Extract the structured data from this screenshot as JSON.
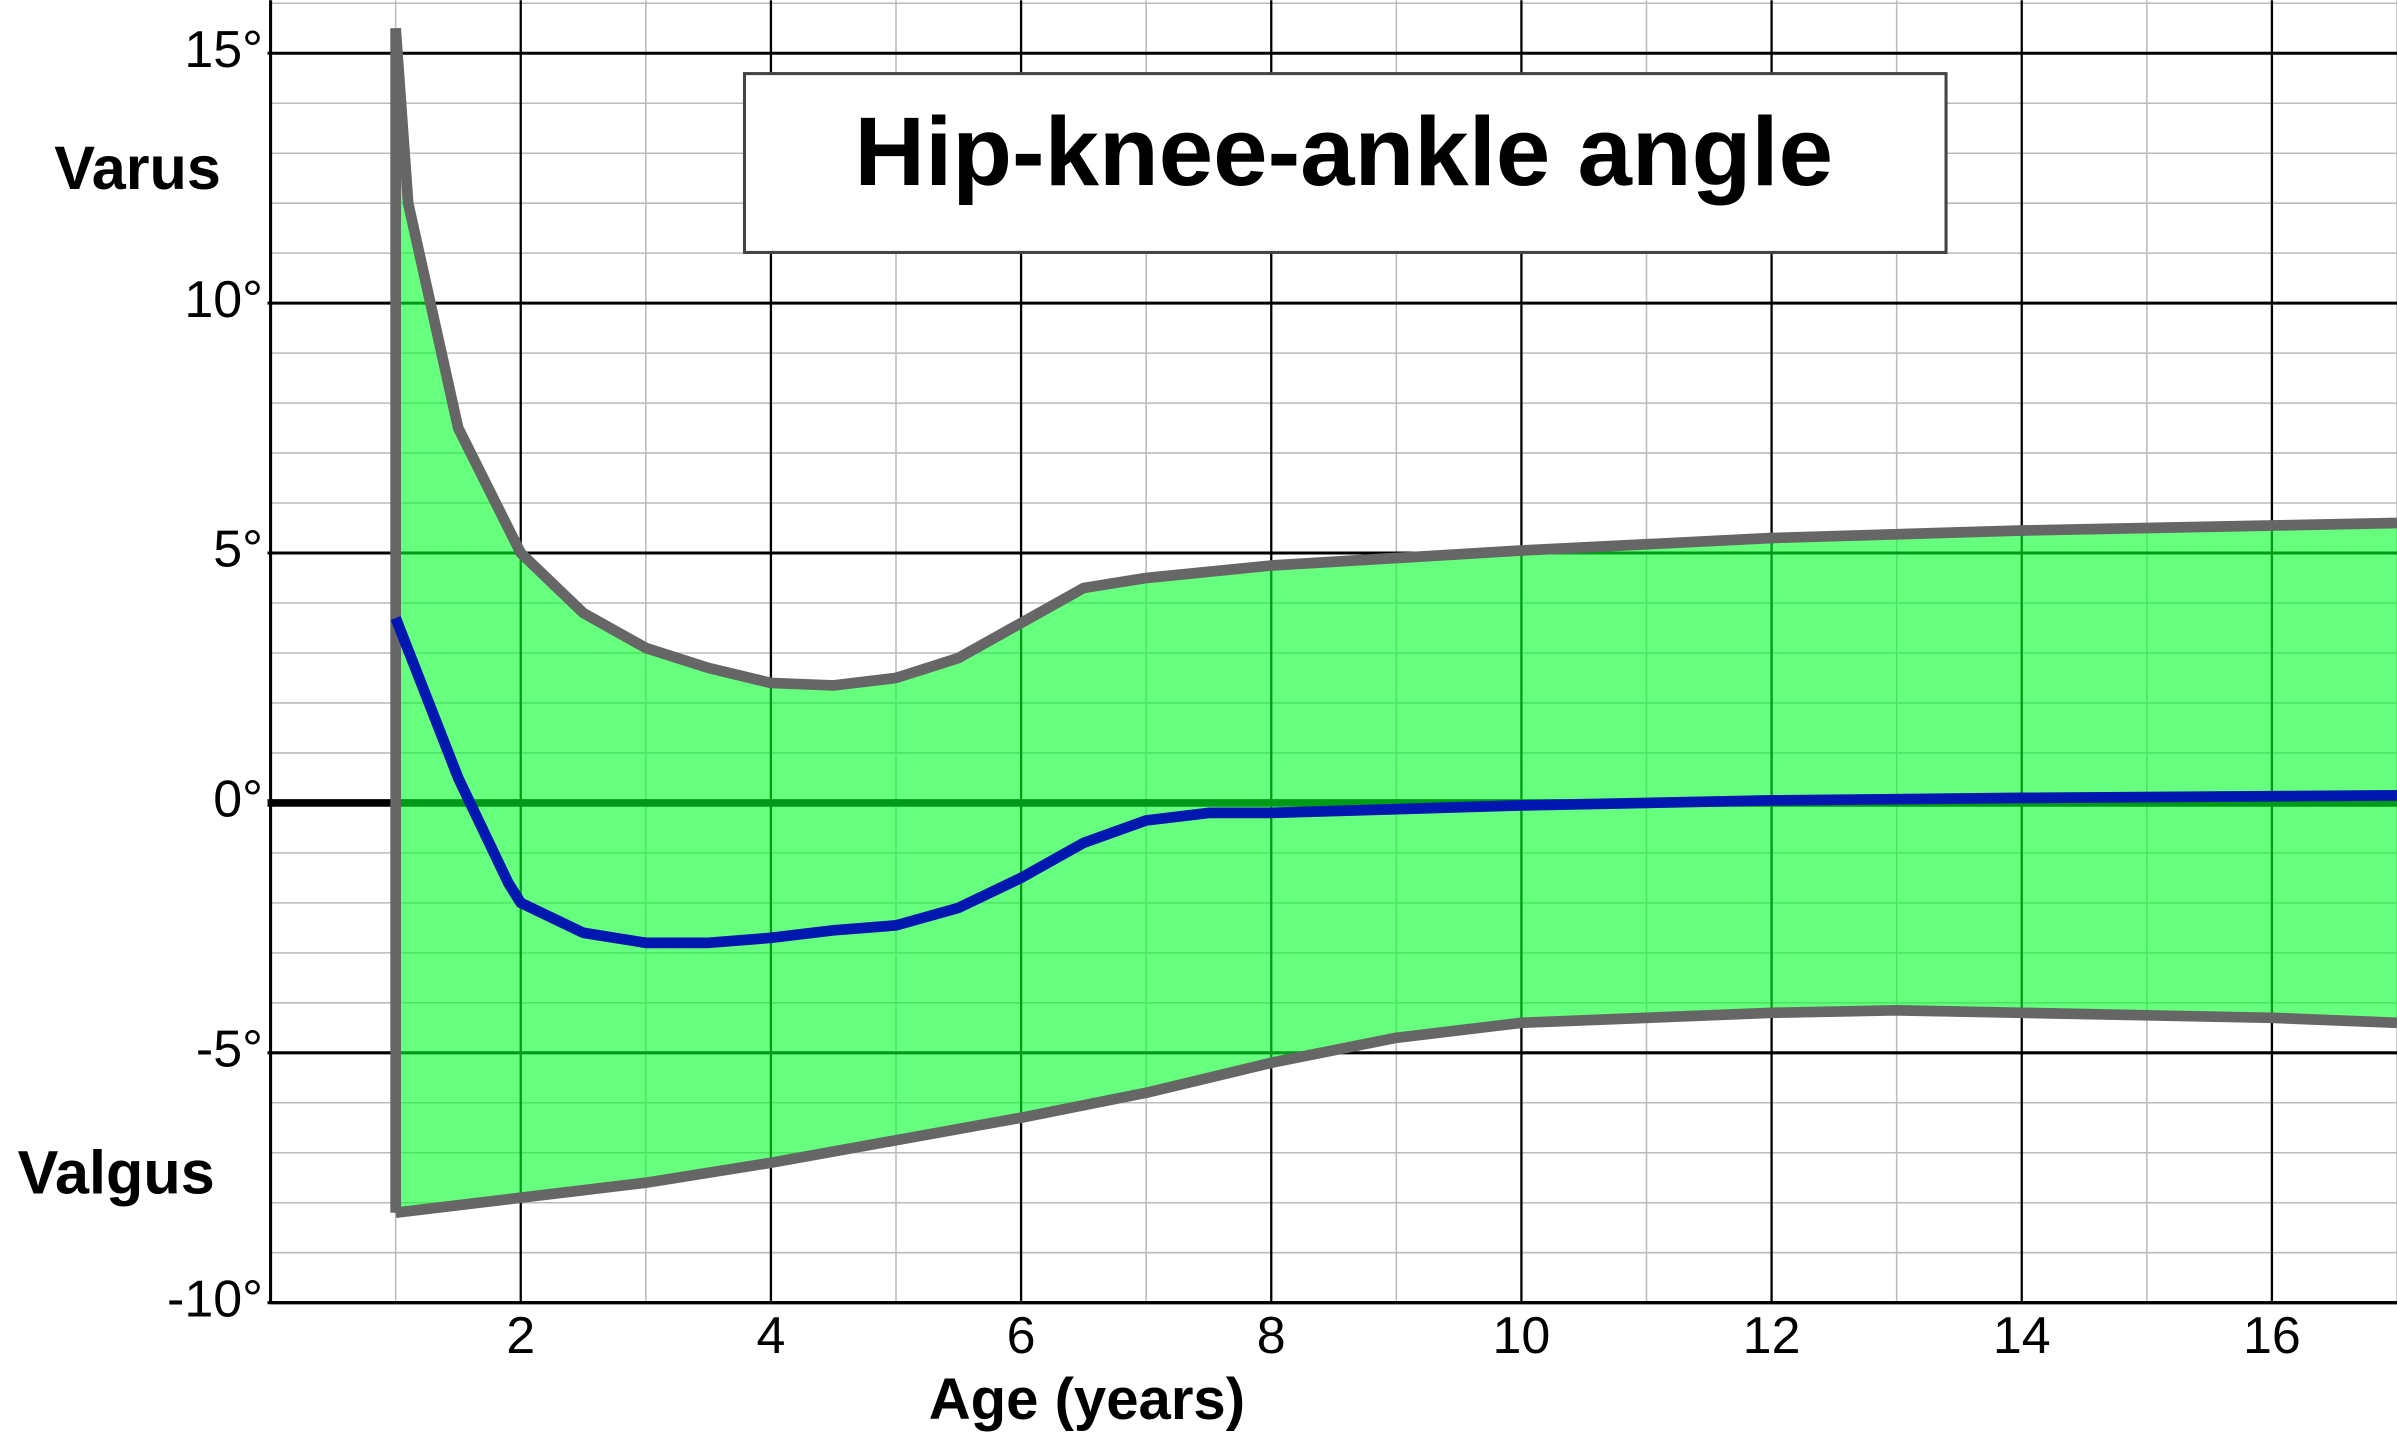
{
  "chart_data": {
    "type": "line",
    "title": "Hip-knee-ankle angle",
    "xlabel": "Age (years)",
    "annotations": [
      "Varus",
      "Valgus"
    ],
    "xlim": [
      0,
      17
    ],
    "ylim": [
      -10,
      16
    ],
    "xticks": [
      2,
      4,
      6,
      8,
      10,
      12,
      14,
      16
    ],
    "yticks": [
      {
        "value": -10,
        "label": "-10°"
      },
      {
        "value": -5,
        "label": "-5°"
      },
      {
        "value": 0,
        "label": "0°"
      },
      {
        "value": 5,
        "label": "5°"
      },
      {
        "value": 10,
        "label": "10°"
      },
      {
        "value": 15,
        "label": "15°"
      }
    ],
    "grid": true,
    "band_color": "#00ff28",
    "series": [
      {
        "color": "#666666",
        "x": [
          1,
          1.1,
          1.5,
          2,
          2.5,
          3,
          3.5,
          4,
          4.5,
          5,
          5.5,
          6,
          6.5,
          7,
          8,
          10,
          12,
          14,
          16,
          17
        ],
        "values": [
          15.5,
          12,
          7.5,
          5,
          3.8,
          3.1,
          2.7,
          2.4,
          2.35,
          2.5,
          2.9,
          3.6,
          4.3,
          4.5,
          4.75,
          5.05,
          5.3,
          5.45,
          5.55,
          5.6
        ]
      },
      {
        "color": "#666666",
        "x": [
          1,
          2,
          3,
          4,
          5,
          6,
          7,
          8,
          9,
          10,
          12,
          13,
          14,
          16,
          17
        ],
        "values": [
          -8.2,
          -7.9,
          -7.6,
          -7.2,
          -6.75,
          -6.3,
          -5.8,
          -5.2,
          -4.7,
          -4.4,
          -4.2,
          -4.15,
          -4.2,
          -4.3,
          -4.4
        ]
      },
      {
        "color": "#0018b0",
        "x": [
          1,
          1.5,
          1.9,
          2,
          2.5,
          3,
          3.5,
          4,
          4.5,
          5,
          5.5,
          6,
          6.5,
          7,
          7.5,
          8,
          10,
          12,
          14,
          17
        ],
        "values": [
          3.7,
          0.5,
          -1.6,
          -2.0,
          -2.6,
          -2.8,
          -2.8,
          -2.7,
          -2.55,
          -2.45,
          -2.1,
          -1.5,
          -0.8,
          -0.35,
          -0.2,
          -0.2,
          -0.05,
          0.05,
          0.1,
          0.15
        ]
      }
    ]
  }
}
